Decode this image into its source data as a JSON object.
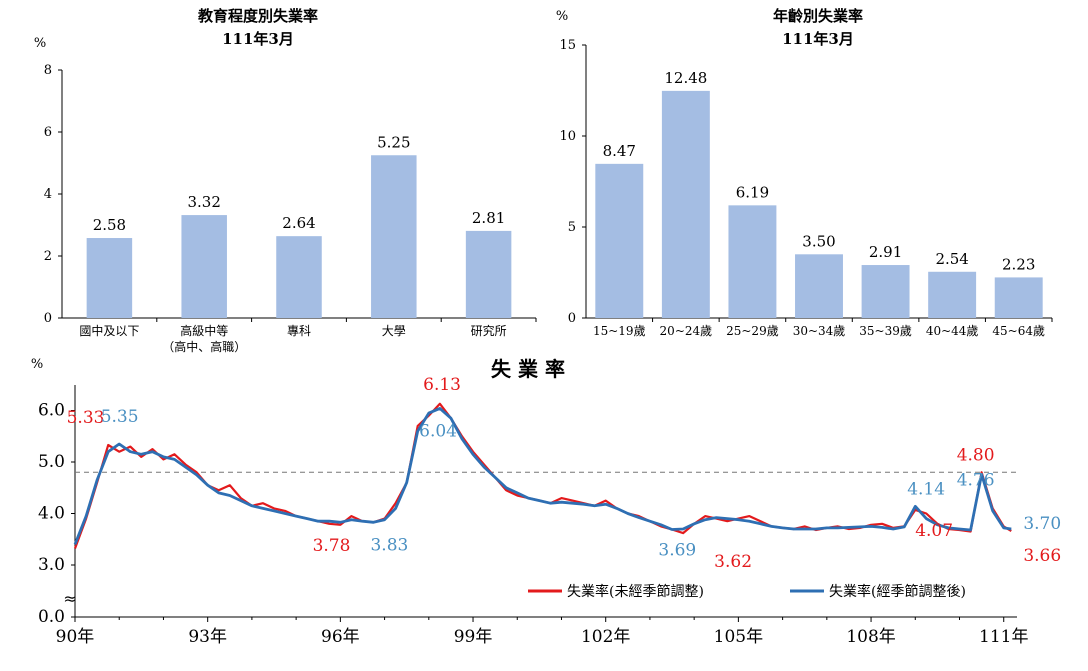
{
  "chart_data": [
    {
      "type": "bar",
      "title": "教育程度別失業率",
      "subtitle": "111年3月",
      "ylabel": "%",
      "ylim": [
        0,
        8
      ],
      "yticks": [
        0,
        2,
        4,
        6,
        8
      ],
      "categories": [
        "國中及以下",
        "高級中等",
        "專科",
        "大學",
        "研究所"
      ],
      "category_sublabels": [
        "",
        "（高中、高職）",
        "",
        "",
        ""
      ],
      "values": [
        2.58,
        3.32,
        2.64,
        5.25,
        2.81
      ],
      "value_labels": [
        "2.58",
        "3.32",
        "2.64",
        "5.25",
        "2.81"
      ],
      "bar_color": "#a4bde3"
    },
    {
      "type": "bar",
      "title": "年齡別失業率",
      "subtitle": "111年3月",
      "ylabel": "%",
      "ylim": [
        0,
        15
      ],
      "yticks": [
        0,
        5,
        10,
        15
      ],
      "categories": [
        "15~19歲",
        "20~24歲",
        "25~29歲",
        "30~34歲",
        "35~39歲",
        "40~44歲",
        "45~64歲"
      ],
      "values": [
        8.47,
        12.48,
        6.19,
        3.5,
        2.91,
        2.54,
        2.23
      ],
      "value_labels": [
        "8.47",
        "12.48",
        "6.19",
        "3.50",
        "2.91",
        "2.54",
        "2.23"
      ],
      "bar_color": "#a4bde3"
    },
    {
      "type": "line",
      "title": "失 業 率",
      "ylabel": "%",
      "ylim": [
        0,
        6.5
      ],
      "yticks": [
        "0.0",
        "3.0",
        "4.0",
        "5.0",
        "6.0"
      ],
      "axis_break": "≈",
      "xlim": [
        90,
        111.3
      ],
      "xticks": [
        90,
        93,
        96,
        99,
        102,
        105,
        108,
        111
      ],
      "xtick_labels": [
        "90年",
        "93年",
        "96年",
        "99年",
        "102年",
        "105年",
        "108年",
        "111年"
      ],
      "reference_line": {
        "value": 4.8,
        "style": "dashed",
        "color": "#777777"
      },
      "series": [
        {
          "name": "失業率(未經季節調整)",
          "color": "#e31a1c",
          "x": [
            90.0,
            90.25,
            90.5,
            90.75,
            91.0,
            91.25,
            91.5,
            91.75,
            92.0,
            92.25,
            92.5,
            92.75,
            93.0,
            93.25,
            93.5,
            93.75,
            94.0,
            94.25,
            94.5,
            94.75,
            95.0,
            95.25,
            95.5,
            95.75,
            96.0,
            96.25,
            96.5,
            96.75,
            97.0,
            97.25,
            97.5,
            97.75,
            98.0,
            98.25,
            98.5,
            98.75,
            99.0,
            99.25,
            99.5,
            99.75,
            100.0,
            100.25,
            100.5,
            100.75,
            101.0,
            101.25,
            101.5,
            101.75,
            102.0,
            102.25,
            102.5,
            102.75,
            103.0,
            103.25,
            103.5,
            103.75,
            104.0,
            104.25,
            104.5,
            104.75,
            105.0,
            105.25,
            105.5,
            105.75,
            106.0,
            106.25,
            106.5,
            106.75,
            107.0,
            107.25,
            107.5,
            107.75,
            108.0,
            108.25,
            108.5,
            108.75,
            109.0,
            109.25,
            109.5,
            109.75,
            110.0,
            110.25,
            110.5,
            110.75,
            111.0,
            111.17
          ],
          "values": [
            3.32,
            3.9,
            4.6,
            5.33,
            5.2,
            5.3,
            5.1,
            5.25,
            5.05,
            5.15,
            4.95,
            4.8,
            4.55,
            4.45,
            4.55,
            4.3,
            4.15,
            4.2,
            4.1,
            4.05,
            3.95,
            3.9,
            3.85,
            3.8,
            3.78,
            3.95,
            3.85,
            3.83,
            3.9,
            4.2,
            4.6,
            5.7,
            5.9,
            6.13,
            5.85,
            5.5,
            5.2,
            4.95,
            4.7,
            4.45,
            4.35,
            4.3,
            4.25,
            4.2,
            4.3,
            4.25,
            4.2,
            4.15,
            4.25,
            4.1,
            4.0,
            3.95,
            3.85,
            3.75,
            3.69,
            3.62,
            3.8,
            3.95,
            3.9,
            3.85,
            3.9,
            3.95,
            3.85,
            3.75,
            3.72,
            3.7,
            3.75,
            3.68,
            3.72,
            3.75,
            3.7,
            3.72,
            3.78,
            3.8,
            3.72,
            3.75,
            4.07,
            4.0,
            3.8,
            3.7,
            3.68,
            3.65,
            4.8,
            4.1,
            3.75,
            3.66
          ]
        },
        {
          "name": "失業率(經季節調整後)",
          "color": "#2e6fb3",
          "x": [
            90.0,
            90.25,
            90.5,
            90.75,
            91.0,
            91.25,
            91.5,
            91.75,
            92.0,
            92.25,
            92.5,
            92.75,
            93.0,
            93.25,
            93.5,
            93.75,
            94.0,
            94.25,
            94.5,
            94.75,
            95.0,
            95.25,
            95.5,
            95.75,
            96.0,
            96.25,
            96.5,
            96.75,
            97.0,
            97.25,
            97.5,
            97.75,
            98.0,
            98.25,
            98.5,
            98.75,
            99.0,
            99.25,
            99.5,
            99.75,
            100.0,
            100.25,
            100.5,
            100.75,
            101.0,
            101.25,
            101.5,
            101.75,
            102.0,
            102.25,
            102.5,
            102.75,
            103.0,
            103.25,
            103.5,
            103.75,
            104.0,
            104.25,
            104.5,
            104.75,
            105.0,
            105.25,
            105.5,
            105.75,
            106.0,
            106.25,
            106.5,
            106.75,
            107.0,
            107.25,
            107.5,
            107.75,
            108.0,
            108.25,
            108.5,
            108.75,
            109.0,
            109.25,
            109.5,
            109.75,
            110.0,
            110.25,
            110.5,
            110.75,
            111.0,
            111.17
          ],
          "values": [
            3.4,
            3.95,
            4.65,
            5.2,
            5.35,
            5.2,
            5.15,
            5.2,
            5.1,
            5.05,
            4.9,
            4.75,
            4.55,
            4.4,
            4.35,
            4.25,
            4.15,
            4.1,
            4.05,
            4.0,
            3.95,
            3.9,
            3.85,
            3.85,
            3.83,
            3.88,
            3.85,
            3.83,
            3.88,
            4.1,
            4.6,
            5.6,
            5.95,
            6.04,
            5.85,
            5.45,
            5.15,
            4.9,
            4.7,
            4.5,
            4.4,
            4.3,
            4.25,
            4.2,
            4.22,
            4.2,
            4.18,
            4.15,
            4.18,
            4.1,
            4.0,
            3.92,
            3.85,
            3.78,
            3.69,
            3.7,
            3.8,
            3.88,
            3.92,
            3.9,
            3.88,
            3.85,
            3.8,
            3.75,
            3.72,
            3.7,
            3.7,
            3.7,
            3.72,
            3.72,
            3.73,
            3.74,
            3.75,
            3.73,
            3.7,
            3.74,
            4.14,
            3.9,
            3.78,
            3.72,
            3.7,
            3.68,
            4.76,
            4.05,
            3.72,
            3.7
          ]
        }
      ],
      "annotations": [
        {
          "text": "5.33",
          "x": 90.6,
          "y": 5.33,
          "color": "#e31a1c"
        },
        {
          "text": "5.35",
          "x": 91.1,
          "y": 5.35,
          "color": "#4a90c2"
        },
        {
          "text": "6.13",
          "x": 98.3,
          "y": 6.13,
          "color": "#e31a1c"
        },
        {
          "text": "6.04",
          "x": 98.3,
          "y": 6.04,
          "color": "#4a90c2"
        },
        {
          "text": "3.78",
          "x": 95.8,
          "y": 3.78,
          "color": "#e31a1c"
        },
        {
          "text": "3.83",
          "x": 97.2,
          "y": 3.83,
          "color": "#4a90c2"
        },
        {
          "text": "3.69",
          "x": 103.8,
          "y": 3.69,
          "color": "#4a90c2"
        },
        {
          "text": "3.62",
          "x": 104.7,
          "y": 3.62,
          "color": "#e31a1c"
        },
        {
          "text": "4.14",
          "x": 109.2,
          "y": 4.14,
          "color": "#4a90c2"
        },
        {
          "text": "4.07",
          "x": 109.2,
          "y": 4.07,
          "color": "#e31a1c"
        },
        {
          "text": "4.80",
          "x": 110.5,
          "y": 4.8,
          "color": "#e31a1c"
        },
        {
          "text": "4.76",
          "x": 110.5,
          "y": 4.76,
          "color": "#4a90c2"
        },
        {
          "text": "3.70",
          "x": 111.6,
          "y": 3.7,
          "color": "#4a90c2"
        },
        {
          "text": "3.66",
          "x": 111.6,
          "y": 3.66,
          "color": "#e31a1c"
        }
      ],
      "legend": "bottom-right"
    }
  ]
}
